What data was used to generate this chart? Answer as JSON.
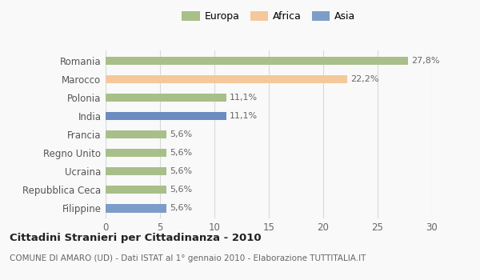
{
  "categories": [
    "Filippine",
    "Repubblica Ceca",
    "Ucraina",
    "Regno Unito",
    "Francia",
    "India",
    "Polonia",
    "Marocco",
    "Romania"
  ],
  "values": [
    5.6,
    5.6,
    5.6,
    5.6,
    5.6,
    11.1,
    11.1,
    22.2,
    27.8
  ],
  "labels": [
    "5,6%",
    "5,6%",
    "5,6%",
    "5,6%",
    "5,6%",
    "11,1%",
    "11,1%",
    "22,2%",
    "27,8%"
  ],
  "colors": [
    "#7b9dc8",
    "#a8bf8a",
    "#a8bf8a",
    "#a8bf8a",
    "#a8bf8a",
    "#6b8cbf",
    "#a8bf8a",
    "#f5c89a",
    "#a8bf8a"
  ],
  "legend_labels": [
    "Europa",
    "Africa",
    "Asia"
  ],
  "legend_colors": [
    "#a8bf8a",
    "#f5c89a",
    "#7b9dc8"
  ],
  "xlim": [
    0,
    30
  ],
  "xticks": [
    0,
    5,
    10,
    15,
    20,
    25,
    30
  ],
  "title": "Cittadini Stranieri per Cittadinanza - 2010",
  "subtitle": "COMUNE DI AMARO (UD) - Dati ISTAT al 1° gennaio 2010 - Elaborazione TUTTITALIA.IT",
  "background_color": "#f9f9f9",
  "grid_color": "#d8d8d8",
  "bar_height": 0.45
}
